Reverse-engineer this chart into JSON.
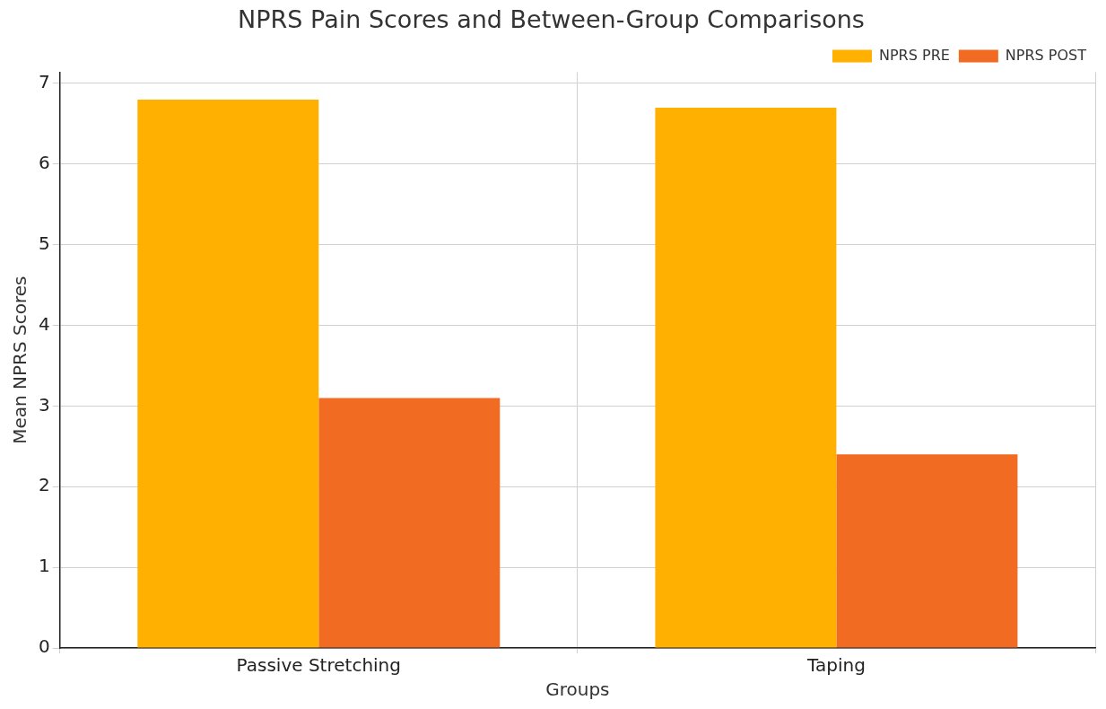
{
  "chart_data": {
    "type": "bar",
    "title": "NPRS Pain Scores and Between-Group Comparisons",
    "xlabel": "Groups",
    "ylabel": "Mean NPRS Scores",
    "categories": [
      "Passive Stretching",
      "Taping"
    ],
    "series": [
      {
        "name": "NPRS PRE",
        "color": "#ffb000",
        "values": [
          6.8,
          6.7
        ]
      },
      {
        "name": "NPRS POST",
        "color": "#f26b22",
        "values": [
          3.1,
          2.4
        ]
      }
    ],
    "ylim": [
      0,
      7.14
    ],
    "yticks": [
      0,
      1,
      2,
      3,
      4,
      5,
      6,
      7
    ],
    "grid": true,
    "legend": "top right"
  }
}
